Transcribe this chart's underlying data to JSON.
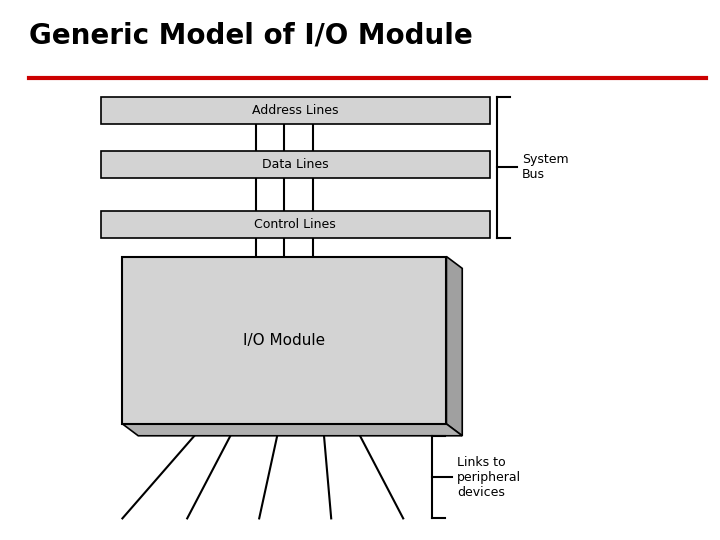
{
  "title": "Generic Model of I/O Module",
  "title_fontsize": 20,
  "title_color": "#000000",
  "title_bold": true,
  "red_line_color": "#cc0000",
  "bg_color": "#ffffff",
  "box_fill": "#d3d3d3",
  "box_edge": "#000000",
  "system_bus_label": "System\nBus",
  "links_label": "Links to\nperipheral\ndevices",
  "address_label": "Address Lines",
  "data_label": "Data Lines",
  "control_label": "Control Lines",
  "io_module_label": "I/O Module"
}
